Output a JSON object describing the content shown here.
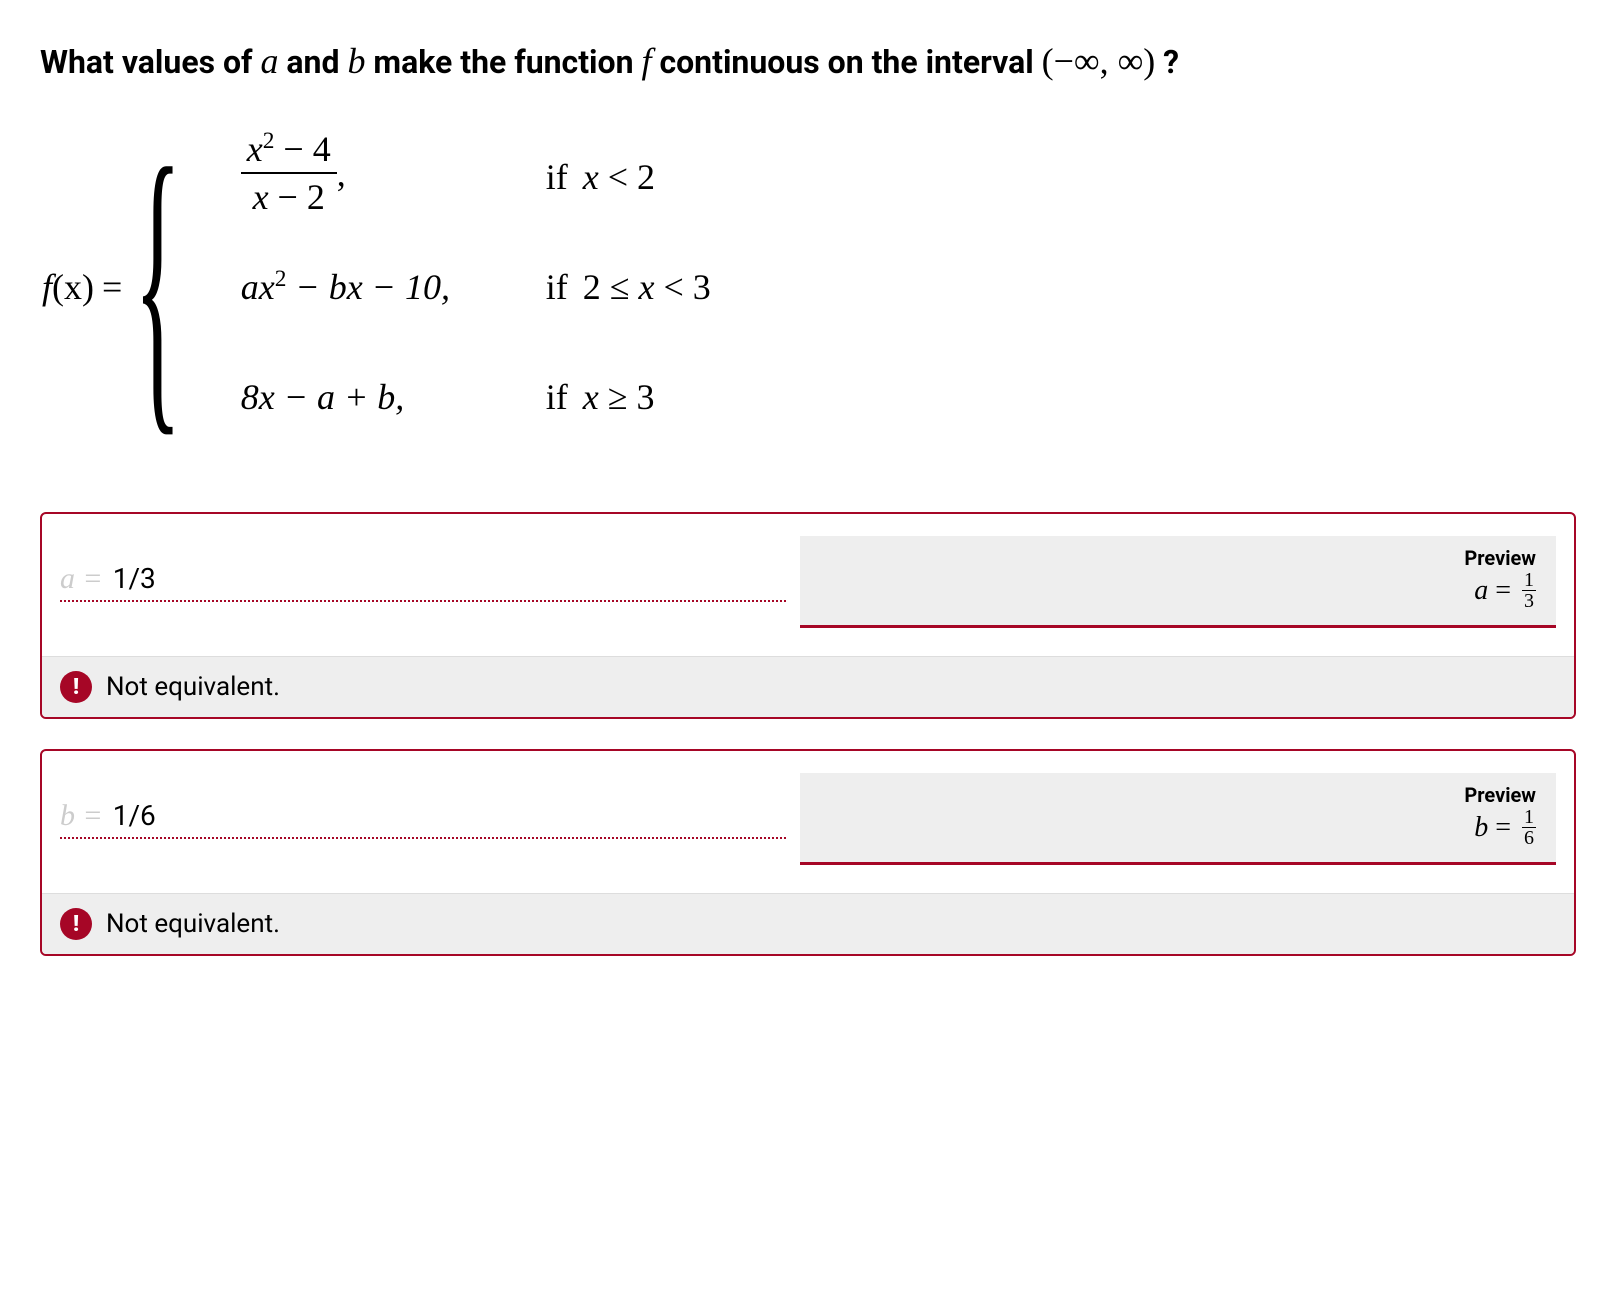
{
  "prompt": {
    "p1": "What values of ",
    "var_a": "a",
    "p2": " and ",
    "var_b": "b",
    "p3": " make the function ",
    "var_f": "f",
    "p4": " continuous on the interval ",
    "interval": "(−∞, ∞)",
    "p5": "?"
  },
  "function": {
    "lhs_f": "f",
    "lhs_x": "(x)",
    "eq": "=",
    "case1": {
      "num_a": "x",
      "num_exp": "2",
      "num_b": " − 4",
      "den_a": "x",
      "den_b": " − 2",
      "comma": ",",
      "cond_if": "if ",
      "cond_var": "x",
      "cond_rest": " < 2"
    },
    "case2": {
      "t1": "ax",
      "exp": "2",
      "t2": " − bx − 10,",
      "cond_if": "if ",
      "cond_a": "2 ≤ ",
      "cond_var": "x",
      "cond_b": " < 3"
    },
    "case3": {
      "expr": "8x − a + b,",
      "cond_if": "if ",
      "cond_var": "x",
      "cond_rest": " ≥ 3"
    }
  },
  "answers": [
    {
      "prefix": "a =",
      "value": "1/3",
      "preview_label": "Preview",
      "preview_var": "a",
      "preview_eq": " = ",
      "preview_num": "1",
      "preview_den": "3",
      "feedback": "Not equivalent."
    },
    {
      "prefix": "b =",
      "value": "1/6",
      "preview_label": "Preview",
      "preview_var": "b",
      "preview_eq": " = ",
      "preview_num": "1",
      "preview_den": "6",
      "feedback": "Not equivalent."
    }
  ],
  "colors": {
    "accent": "#a60626",
    "muted": "#cccccc",
    "panel": "#eeeeee"
  }
}
